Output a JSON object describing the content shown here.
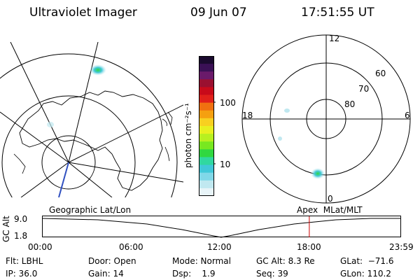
{
  "header": {
    "title": "Ultraviolet Imager",
    "date": "09 Jun 07",
    "time": "17:51:55 UT"
  },
  "colorbar": {
    "unit": "photon cm⁻²s⁻¹",
    "ticks": [
      "100",
      "10"
    ],
    "colors": [
      "#1a0a2e",
      "#3a1055",
      "#6a1a6a",
      "#9a1030",
      "#c80a1a",
      "#e0201a",
      "#f07010",
      "#f5a010",
      "#f8d020",
      "#e8f020",
      "#b8f020",
      "#78e820",
      "#30d840",
      "#30d8a0",
      "#40c8d8",
      "#80d8e8",
      "#c0e8f0",
      "#e8f4f8"
    ]
  },
  "left_map": {},
  "right_map": {
    "mlt_labels": {
      "top": "12",
      "bottom": "0",
      "left": "18",
      "right": "6"
    },
    "lat_labels": [
      "60",
      "70",
      "80"
    ]
  },
  "timeline": {
    "left_label": "Geographic Lat/Lon",
    "right_label": "Apex  MLat/MLT",
    "y_axis_label": "GC Alt",
    "y_ticks": [
      "9.0",
      "1.8"
    ],
    "x_ticks": [
      "00:00",
      "06:00",
      "12:00",
      "18:00",
      "23:59"
    ],
    "current_time_hours": 17.865,
    "marker_color": "#cc0000"
  },
  "info": {
    "flt": "Flt: LBHL",
    "ip": "IP: 36.0",
    "door": "Door: Open",
    "gain": "Gain: 14",
    "mode": "Mode: Normal",
    "dsp": "Dsp:    1.9",
    "gcalt": "GC Alt: 8.3 Re",
    "seq": "Seq: 39",
    "glat": "GLat:  −71.6",
    "glon": "GLon: 110.2"
  }
}
